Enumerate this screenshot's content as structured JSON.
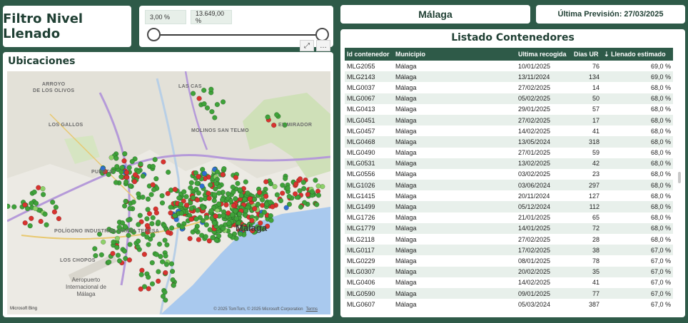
{
  "filter": {
    "title": "Filtro Nivel Llenado"
  },
  "slider": {
    "min_value": "3,00 %",
    "max_value": "13.649,00 %"
  },
  "map": {
    "title": "Ubicaciones",
    "labels": {
      "arroyo": "ARROYO\nDE LOS OLIVOS",
      "los_gallos": "LOS GALLOS",
      "molinos": "MOLINOS SAN TELMO",
      "mirador": "EL MIRADOR",
      "las_cas": "LAS CAS",
      "puerto": "PUERTO",
      "poligono": "POLÍGONO INDUSTRIAL SANTA TERESA",
      "los_chopos": "LOS CHOPOS",
      "ciudad": "Málaga",
      "aeropuerto": "Aeropuerto\nInternacional de\nMálaga"
    },
    "copyright": "© 2025 TomTom, © 2025 Microsoft Corporation",
    "terms": "Terms",
    "logo": "Microsoft Bing",
    "point_colors": {
      "green": "#3fa23a",
      "red": "#d8332f",
      "blue": "#2f6fd0",
      "light_green": "#8ed16a"
    }
  },
  "city": {
    "name": "Málaga"
  },
  "forecast": {
    "label": "Última Previsión: 27/03/2025"
  },
  "table": {
    "title": "Listado Contenedores",
    "columns": [
      "Id contenedor",
      "Municipio",
      "Ultima recogida",
      "Dias UR",
      "Llenado estimado"
    ],
    "rows": [
      [
        "MLG2055",
        "Málaga",
        "10/01/2025",
        "76",
        "69,0 %"
      ],
      [
        "MLG2143",
        "Málaga",
        "13/11/2024",
        "134",
        "69,0 %"
      ],
      [
        "MLG0037",
        "Málaga",
        "27/02/2025",
        "14",
        "68,0 %"
      ],
      [
        "MLG0067",
        "Málaga",
        "05/02/2025",
        "50",
        "68,0 %"
      ],
      [
        "MLG0413",
        "Málaga",
        "29/01/2025",
        "57",
        "68,0 %"
      ],
      [
        "MLG0451",
        "Málaga",
        "27/02/2025",
        "17",
        "68,0 %"
      ],
      [
        "MLG0457",
        "Málaga",
        "14/02/2025",
        "41",
        "68,0 %"
      ],
      [
        "MLG0468",
        "Málaga",
        "13/05/2024",
        "318",
        "68,0 %"
      ],
      [
        "MLG0490",
        "Málaga",
        "27/01/2025",
        "59",
        "68,0 %"
      ],
      [
        "MLG0531",
        "Málaga",
        "13/02/2025",
        "42",
        "68,0 %"
      ],
      [
        "MLG0556",
        "Málaga",
        "03/02/2025",
        "23",
        "68,0 %"
      ],
      [
        "MLG1026",
        "Málaga",
        "03/06/2024",
        "297",
        "68,0 %"
      ],
      [
        "MLG1415",
        "Málaga",
        "20/11/2024",
        "127",
        "68,0 %"
      ],
      [
        "MLG1499",
        "Málaga",
        "05/12/2024",
        "112",
        "68,0 %"
      ],
      [
        "MLG1726",
        "Málaga",
        "21/01/2025",
        "65",
        "68,0 %"
      ],
      [
        "MLG1779",
        "Málaga",
        "14/01/2025",
        "72",
        "68,0 %"
      ],
      [
        "MLG2118",
        "Málaga",
        "27/02/2025",
        "28",
        "68,0 %"
      ],
      [
        "MLG0117",
        "Málaga",
        "17/02/2025",
        "38",
        "67,0 %"
      ],
      [
        "MLG0229",
        "Málaga",
        "08/01/2025",
        "78",
        "67,0 %"
      ],
      [
        "MLG0307",
        "Málaga",
        "20/02/2025",
        "35",
        "67,0 %"
      ],
      [
        "MLG0406",
        "Málaga",
        "14/02/2025",
        "41",
        "67,0 %"
      ],
      [
        "MLG0590",
        "Málaga",
        "09/01/2025",
        "77",
        "67,0 %"
      ],
      [
        "MLG0607",
        "Málaga",
        "05/03/2024",
        "387",
        "67,0 %"
      ]
    ]
  }
}
